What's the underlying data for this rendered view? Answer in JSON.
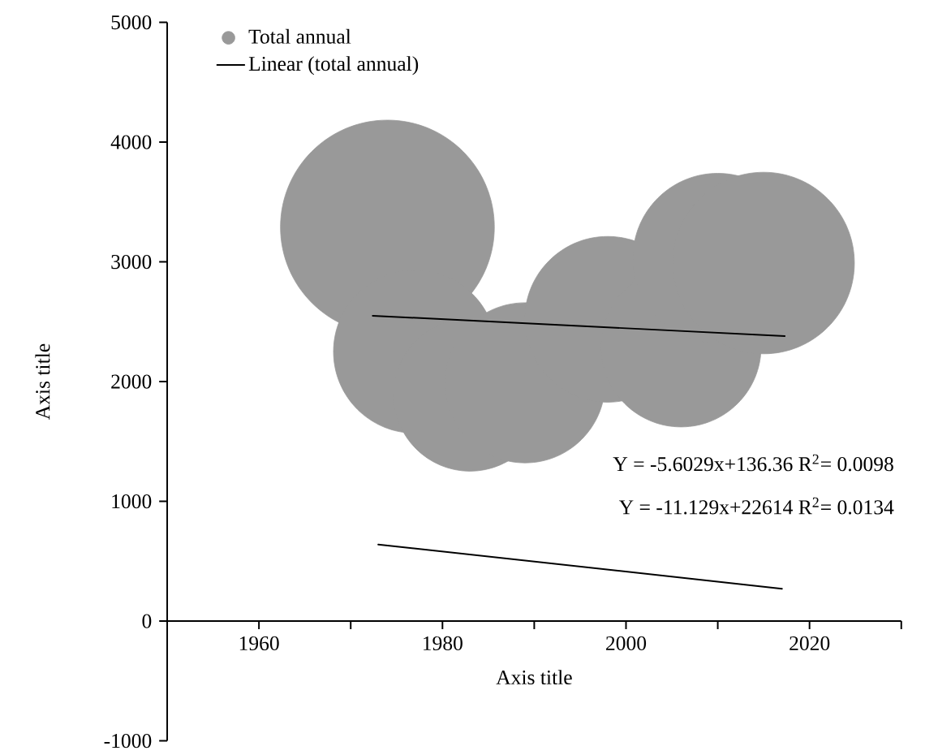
{
  "chart_data": {
    "type": "bubble",
    "xlabel": "Axis title",
    "ylabel": "Axis title",
    "xlim": [
      1950,
      2030
    ],
    "xticks": [
      1960,
      {
        "value": 1970,
        "label": null
      },
      1980,
      {
        "value": 1990,
        "label": null
      },
      2000,
      {
        "value": 2010,
        "label": null
      },
      2020,
      {
        "value": 2030,
        "label": null
      }
    ],
    "ylim": [
      -1000,
      5000
    ],
    "yticks": [
      -1000,
      0,
      1000,
      2000,
      3000,
      4000,
      5000
    ],
    "legend": "top left",
    "series": [
      {
        "name": "Total annual",
        "type": "bubble",
        "color": "#999999",
        "x": [
          1974,
          1977,
          1983,
          1989,
          1998,
          2006,
          2010,
          2015
        ],
        "values": [
          3290,
          2250,
          1890,
          1990,
          2520,
          2290,
          3030,
          2990
        ],
        "sizes": [
          1.0,
          0.58,
          0.51,
          0.56,
          0.6,
          0.56,
          0.63,
          0.72
        ]
      },
      {
        "name": "Linear (total annual)",
        "type": "line",
        "color": "#000000",
        "x": [
          1972.4,
          2017.3
        ],
        "values": [
          2550,
          2380
        ]
      },
      {
        "type": "line",
        "color": "#000000",
        "x": [
          1973,
          2017
        ],
        "values": [
          640,
          270
        ]
      }
    ],
    "annotations": [
      "Y = -5.6029x+136.36    R$^{2}$= 0.0098",
      "Y = -11.129x+22614    R$^{2}$= 0.0134"
    ]
  }
}
